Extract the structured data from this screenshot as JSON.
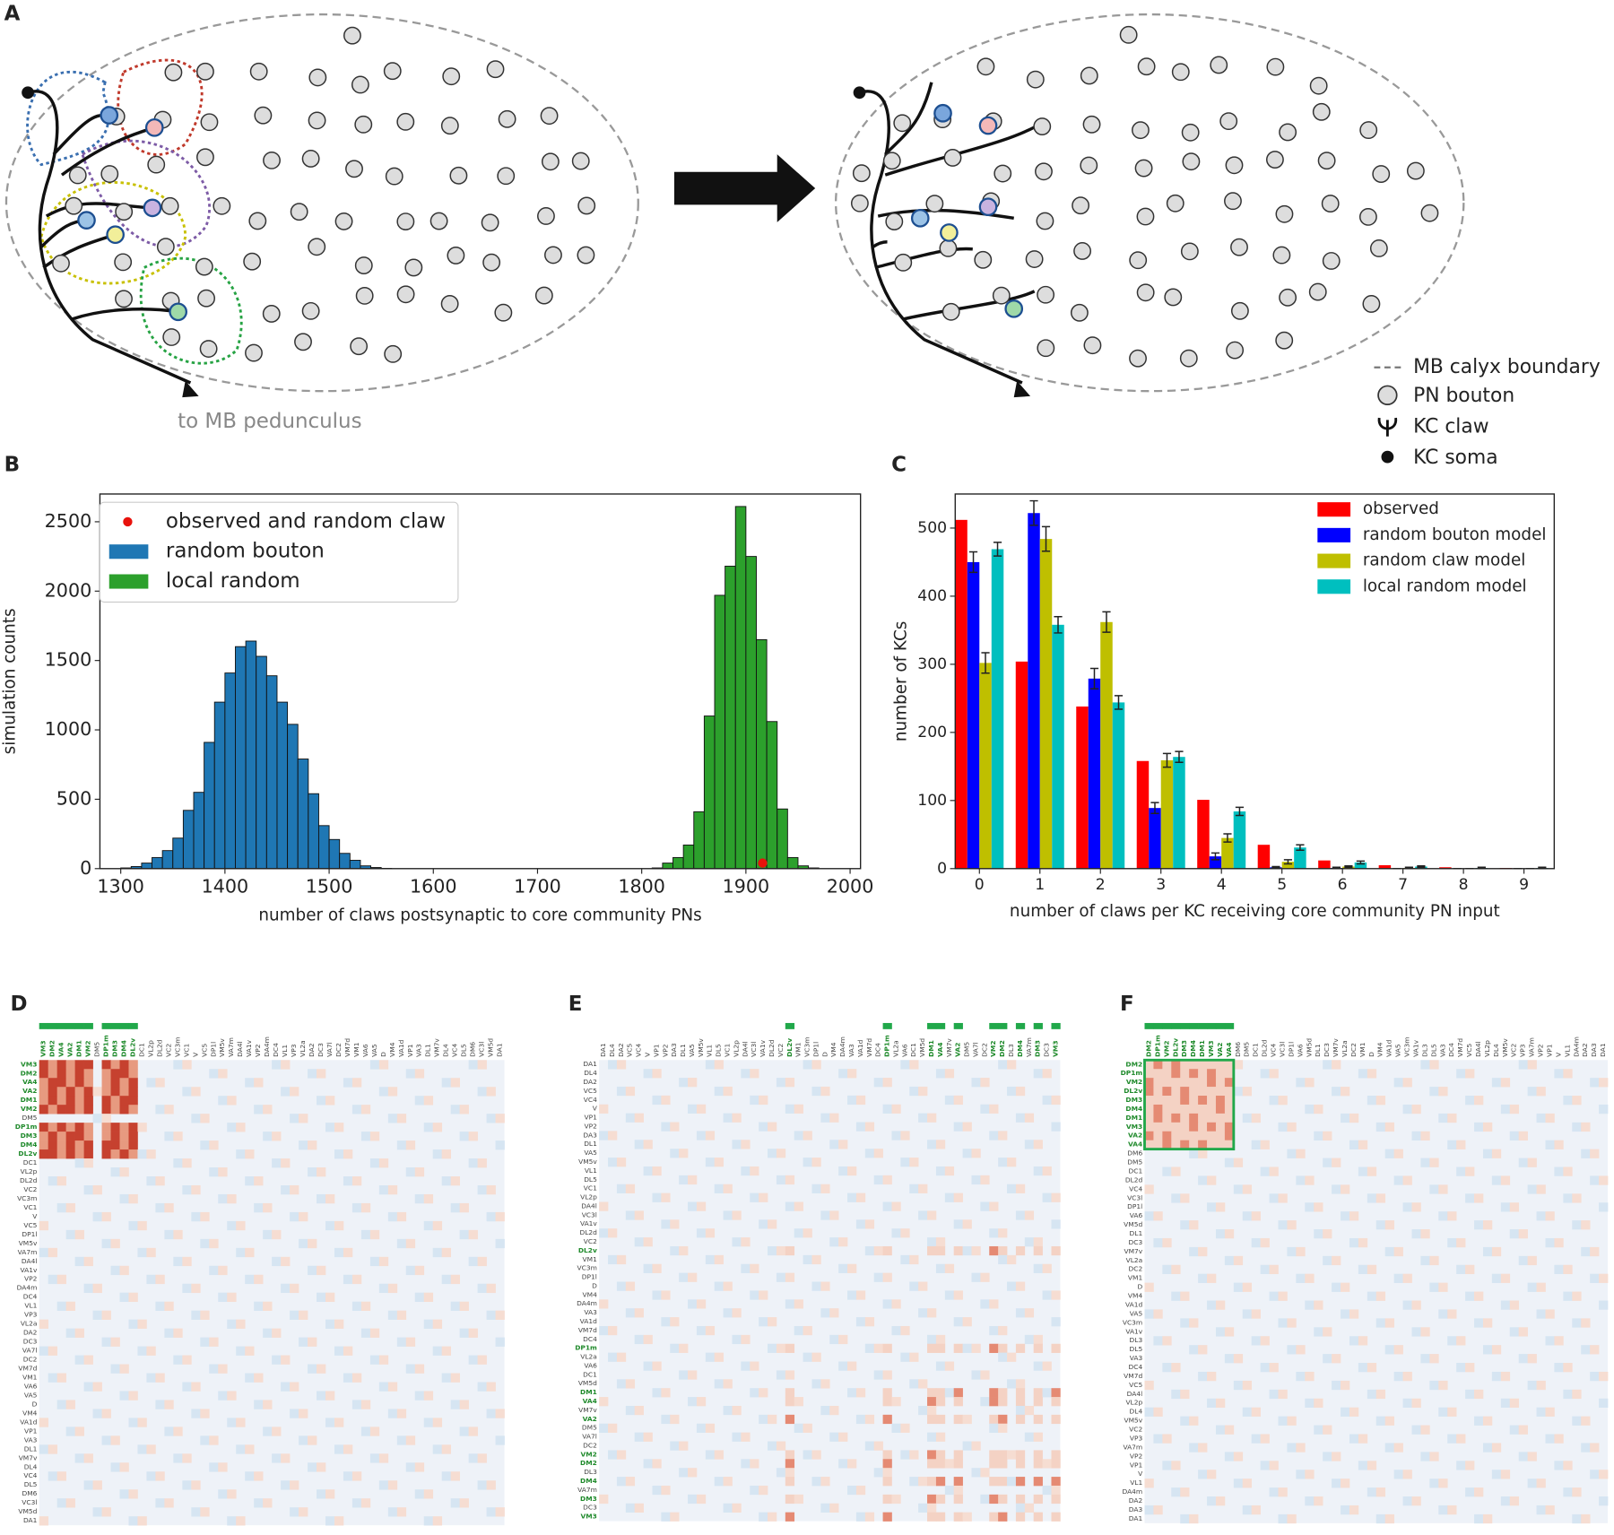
{
  "panels": [
    "A",
    "B",
    "C",
    "D",
    "E",
    "F"
  ],
  "diagram": {
    "outlet_label": "to MB pedunculus",
    "legend": [
      "MB calyx boundary",
      "PN bouton",
      "KC claw",
      "KC soma"
    ]
  },
  "chart_data": [
    {
      "type": "histogram",
      "xlabel": "number of claws postsynaptic to core community PNs",
      "ylabel": "simulation counts",
      "xlim": [
        1280,
        2010
      ],
      "ylim": [
        0,
        2700
      ],
      "xticks": [
        1300,
        1400,
        1500,
        1600,
        1700,
        1800,
        1900,
        2000
      ],
      "yticks": [
        0,
        500,
        1000,
        1500,
        2000,
        2500
      ],
      "legend": "upper left",
      "points": {
        "name": "observed and random claw",
        "color": "#e8120c",
        "x": [
          1916
        ],
        "y": [
          40
        ]
      },
      "series": [
        {
          "name": "random bouton",
          "color": "#1f77b4",
          "bins": [
            1300,
            1310,
            1320,
            1330,
            1340,
            1350,
            1360,
            1370,
            1380,
            1390,
            1400,
            1410,
            1420,
            1430,
            1440,
            1450,
            1460,
            1470,
            1480,
            1490,
            1500,
            1510,
            1520,
            1530,
            1540,
            1550,
            1560
          ],
          "values": [
            5,
            15,
            40,
            80,
            130,
            220,
            420,
            550,
            910,
            1200,
            1410,
            1600,
            1640,
            1530,
            1390,
            1200,
            1040,
            790,
            540,
            310,
            210,
            110,
            60,
            20,
            8,
            2
          ]
        },
        {
          "name": "local random",
          "color": "#2ca02c",
          "bins": [
            1810,
            1820,
            1830,
            1840,
            1850,
            1860,
            1870,
            1880,
            1890,
            1900,
            1910,
            1920,
            1930,
            1940,
            1950,
            1960,
            1970
          ],
          "values": [
            5,
            40,
            80,
            170,
            410,
            1100,
            1970,
            2180,
            2610,
            2250,
            1650,
            1060,
            430,
            80,
            20,
            5
          ]
        }
      ]
    },
    {
      "type": "bar",
      "xlabel": "number of claws per KC receiving core community PN input",
      "ylabel": "number of KCs",
      "categories": [
        "0",
        "1",
        "2",
        "3",
        "4",
        "5",
        "6",
        "7",
        "8",
        "9"
      ],
      "xlim": [
        -0.4,
        9.5
      ],
      "ylim": [
        0,
        550
      ],
      "yticks": [
        0,
        100,
        200,
        300,
        400,
        500
      ],
      "legend": "upper right",
      "series": [
        {
          "name": "observed",
          "color": "#ff0000",
          "values": [
            512,
            304,
            238,
            158,
            101,
            35,
            12,
            5,
            2,
            1
          ]
        },
        {
          "name": "random bouton model",
          "color": "#0000ff",
          "values": [
            450,
            522,
            279,
            89,
            18,
            2,
            1,
            0,
            0,
            0
          ],
          "errors": [
            15,
            18,
            15,
            8,
            5,
            1,
            1,
            0,
            0,
            0
          ]
        },
        {
          "name": "random claw model",
          "color": "#bfbf00",
          "values": [
            302,
            484,
            362,
            159,
            45,
            10,
            3,
            1,
            0,
            0
          ],
          "errors": [
            15,
            18,
            15,
            10,
            6,
            3,
            1,
            1,
            0,
            0
          ]
        },
        {
          "name": "local random model",
          "color": "#00bfbf",
          "values": [
            469,
            358,
            244,
            164,
            84,
            31,
            9,
            3,
            1,
            1
          ],
          "errors": [
            10,
            12,
            10,
            8,
            6,
            4,
            2,
            1,
            1,
            1
          ]
        }
      ]
    },
    {
      "type": "heatmap",
      "labels": [
        "VM3",
        "DM2",
        "VA4",
        "VA2",
        "DM1",
        "VM2",
        "DM5",
        "DP1m",
        "DM3",
        "DM4",
        "DL2v",
        "DC1",
        "VL2p",
        "DL2d",
        "VC2",
        "VC3m",
        "VC1",
        "V",
        "VC5",
        "DP1l",
        "VM5v",
        "VA7m",
        "DA4l",
        "VA1v",
        "VP2",
        "DA4m",
        "DC4",
        "VL1",
        "VP3",
        "VL2a",
        "DA2",
        "DC3",
        "VA7l",
        "DC2",
        "VM7d",
        "VM1",
        "VA6",
        "VA5",
        "D",
        "VM4",
        "VA1d",
        "VP1",
        "VA3",
        "DL1",
        "VM7v",
        "DL4",
        "VC4",
        "DL5",
        "DM6",
        "VC3l",
        "VM5d",
        "DA1"
      ],
      "core": [
        0,
        1,
        2,
        3,
        4,
        5,
        7,
        8,
        9,
        10
      ],
      "box": false
    },
    {
      "type": "heatmap",
      "labels": [
        "DA1",
        "DL4",
        "DA2",
        "VC5",
        "VC4",
        "V",
        "VP1",
        "VP2",
        "DA3",
        "DL1",
        "VA5",
        "VM5v",
        "VL1",
        "DL5",
        "VC1",
        "VL2p",
        "DA4l",
        "VC3l",
        "VA1v",
        "DL2d",
        "VC2",
        "DL2v",
        "VM1",
        "VC3m",
        "DP1l",
        "D",
        "VM4",
        "DA4m",
        "VA3",
        "VA1d",
        "VM7d",
        "DC4",
        "DP1m",
        "VL2a",
        "VA6",
        "DC1",
        "VM5d",
        "DM1",
        "VA4",
        "VM7v",
        "VA2",
        "DM5",
        "VA7l",
        "DC2",
        "VM2",
        "DM2",
        "DL3",
        "DM4",
        "VA7m",
        "DM3",
        "DC3",
        "VM3"
      ],
      "core": [
        21,
        32,
        37,
        38,
        40,
        44,
        45,
        47,
        49,
        51
      ],
      "box": false
    },
    {
      "type": "heatmap",
      "labels": [
        "DM2",
        "DP1m",
        "VM2",
        "DL2v",
        "DM3",
        "DM4",
        "DM1",
        "VM3",
        "VA2",
        "VA4",
        "DM6",
        "DM5",
        "DC1",
        "DL2d",
        "VC4",
        "VC3l",
        "DP1l",
        "VA6",
        "VM5d",
        "DL1",
        "DC3",
        "VM7v",
        "VL2a",
        "DC2",
        "VM1",
        "D",
        "VM4",
        "VA1d",
        "VA5",
        "VC3m",
        "VA1v",
        "DL3",
        "DL5",
        "VA3",
        "DC4",
        "VM7d",
        "VC5",
        "DA4l",
        "VL2p",
        "DL4",
        "VM5v",
        "VC2",
        "VP3",
        "VA7m",
        "VP2",
        "VP1",
        "V",
        "VL1",
        "DA4m",
        "DA2",
        "DA3",
        "DA1"
      ],
      "core": [
        0,
        1,
        2,
        3,
        4,
        5,
        6,
        7,
        8,
        9
      ],
      "box": true
    }
  ]
}
